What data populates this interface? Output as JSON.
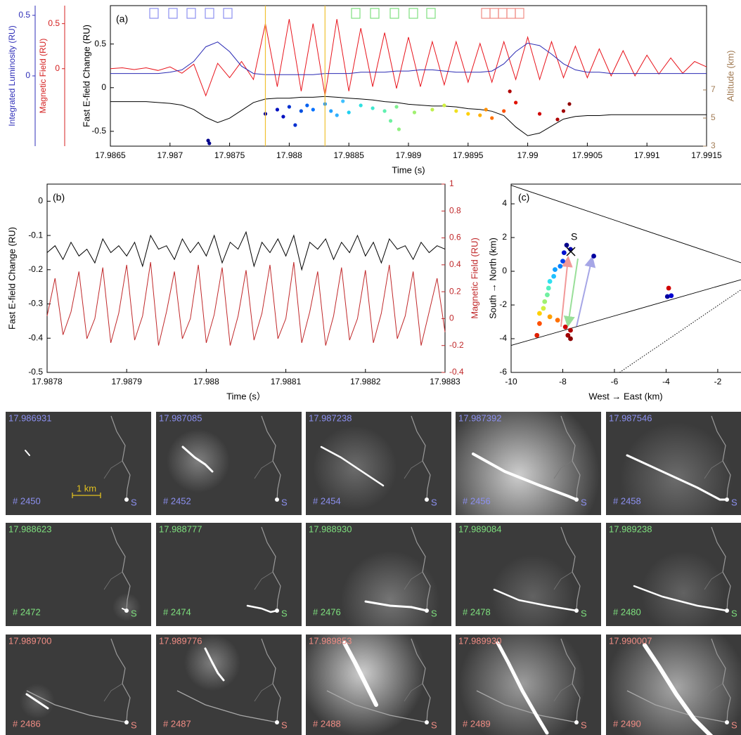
{
  "chart_data": [
    {
      "type": "line",
      "label": "(a)",
      "xlabel": "Time (s)",
      "xlim": [
        17.9865,
        17.9915
      ],
      "xticks": [
        17.9865,
        17.987,
        17.9875,
        17.988,
        17.9885,
        17.989,
        17.9895,
        17.99,
        17.9905,
        17.991,
        17.9915
      ],
      "ylabel": "Fast E-field Change (RU)",
      "ylim": [
        -0.67,
        0.94
      ],
      "yticks": [
        -0.5,
        0,
        0.5
      ],
      "y2label": "Altitude (km)",
      "y2lim": [
        3,
        13
      ],
      "y2ticks": [
        3,
        5,
        7
      ],
      "y2color": "#a27c55",
      "y3label": "Magnetic Field (RU)",
      "y3lim": [
        -0.86,
        0.7
      ],
      "y3ticks": [
        0,
        0.5
      ],
      "y3color": "#d42020",
      "y4label": "Integrated Luminosity (RU)",
      "y4lim": [
        -0.58,
        0.58
      ],
      "y4ticks": [
        0,
        0.5
      ],
      "y4color": "#2f2fb8",
      "x": [
        17.9865,
        17.9866,
        17.9867,
        17.9868,
        17.9869,
        17.987,
        17.9871,
        17.9872,
        17.9873,
        17.9874,
        17.9875,
        17.9876,
        17.9877,
        17.9878,
        17.9879,
        17.988,
        17.9881,
        17.9882,
        17.9883,
        17.9884,
        17.9885,
        17.9886,
        17.9887,
        17.9888,
        17.9889,
        17.989,
        17.9891,
        17.9892,
        17.9893,
        17.9894,
        17.9895,
        17.9896,
        17.9897,
        17.9898,
        17.9899,
        17.99,
        17.9901,
        17.9902,
        17.9903,
        17.9904,
        17.9905,
        17.9906,
        17.9907,
        17.9908,
        17.9909,
        17.991,
        17.9911,
        17.9912,
        17.9913,
        17.9914,
        17.9915
      ],
      "series": [
        {
          "color": "#000000",
          "axis": "y",
          "values": [
            -0.16,
            -0.16,
            -0.16,
            -0.16,
            -0.17,
            -0.18,
            -0.2,
            -0.25,
            -0.34,
            -0.4,
            -0.35,
            -0.26,
            -0.17,
            -0.13,
            -0.12,
            -0.12,
            -0.11,
            -0.11,
            -0.1,
            -0.11,
            -0.12,
            -0.13,
            -0.14,
            -0.16,
            -0.17,
            -0.19,
            -0.2,
            -0.21,
            -0.21,
            -0.22,
            -0.24,
            -0.25,
            -0.27,
            -0.32,
            -0.45,
            -0.55,
            -0.52,
            -0.44,
            -0.36,
            -0.33,
            -0.32,
            -0.32,
            -0.31,
            -0.31,
            -0.31,
            -0.31,
            -0.31,
            -0.31,
            -0.31,
            -0.31,
            -0.31
          ]
        },
        {
          "color": "#e8141c",
          "axis": "y3",
          "values": [
            0.0,
            0.01,
            -0.01,
            0.01,
            -0.02,
            0.02,
            -0.05,
            0.05,
            -0.3,
            0.06,
            -0.1,
            0.08,
            -0.12,
            0.5,
            -0.2,
            0.55,
            -0.25,
            0.5,
            -0.3,
            0.55,
            -0.25,
            0.45,
            -0.2,
            0.4,
            -0.22,
            0.35,
            -0.2,
            0.3,
            -0.18,
            0.3,
            -0.15,
            0.28,
            -0.15,
            0.3,
            -0.12,
            0.35,
            -0.12,
            0.3,
            -0.1,
            0.25,
            -0.1,
            0.22,
            -0.08,
            0.2,
            -0.08,
            0.15,
            -0.06,
            0.12,
            -0.05,
            0.08,
            0.02
          ]
        },
        {
          "color": "#2a2ab4",
          "axis": "y4",
          "values": [
            0.02,
            0.02,
            0.02,
            0.02,
            0.02,
            0.03,
            0.05,
            0.12,
            0.24,
            0.28,
            0.2,
            0.08,
            0.02,
            0.01,
            0.01,
            0.01,
            0.01,
            0.01,
            0.02,
            0.02,
            0.02,
            0.03,
            0.03,
            0.03,
            0.04,
            0.04,
            0.05,
            0.05,
            0.04,
            0.03,
            0.03,
            0.03,
            0.04,
            0.1,
            0.2,
            0.27,
            0.25,
            0.18,
            0.1,
            0.05,
            0.03,
            0.03,
            0.02,
            0.02,
            0.02,
            0.02,
            0.02,
            0.02,
            0.02,
            0.02,
            0.02
          ]
        }
      ],
      "scatter": {
        "axis": "y2",
        "x": [
          17.98732,
          17.98733,
          17.9878,
          17.9879,
          17.98795,
          17.988,
          17.98805,
          17.9881,
          17.98815,
          17.9882,
          17.9883,
          17.98835,
          17.9884,
          17.98845,
          17.9885,
          17.9886,
          17.9887,
          17.9888,
          17.98885,
          17.9889,
          17.98892,
          17.98905,
          17.9892,
          17.9893,
          17.9894,
          17.9895,
          17.9896,
          17.98965,
          17.9897,
          17.9898,
          17.98985,
          17.9899,
          17.9901,
          17.99025,
          17.9903,
          17.99035
        ],
        "values": [
          3.4,
          3.2,
          5.3,
          5.6,
          5.1,
          5.8,
          4.5,
          5.5,
          5.9,
          5.6,
          6.0,
          5.5,
          5.2,
          6.2,
          5.4,
          5.9,
          5.7,
          5.5,
          4.8,
          5.8,
          4.2,
          5.4,
          5.6,
          5.9,
          5.5,
          5.3,
          5.2,
          5.6,
          5.0,
          5.5,
          6.9,
          6.1,
          5.3,
          4.9,
          5.5,
          6.0
        ],
        "colors": [
          "#00008b",
          "#00008b",
          "#0000a0",
          "#0010c0",
          "#0010c0",
          "#0030d0",
          "#0030d0",
          "#0050e0",
          "#0060f0",
          "#0070ff",
          "#1090ff",
          "#20a0ff",
          "#30b0ff",
          "#40c0ff",
          "#20d0f0",
          "#30e0e0",
          "#40e8d0",
          "#60f0b0",
          "#70f0a0",
          "#80f090",
          "#90f080",
          "#a0f070",
          "#c0f050",
          "#d0f040",
          "#f0e020",
          "#ffd000",
          "#ffb000",
          "#ff9000",
          "#ff7000",
          "#ff5000",
          "#b00000",
          "#e01000",
          "#d00000",
          "#b00000",
          "#a00000",
          "#900000"
        ]
      }
    },
    {
      "type": "line",
      "label": "(b)",
      "xlabel": "Time (s）",
      "xlim": [
        17.9878,
        17.9883
      ],
      "xticks": [
        17.9878,
        17.9879,
        17.988,
        17.9881,
        17.9882,
        17.9883
      ],
      "ylabel": "Fast E-field Change (RU)",
      "ylim": [
        -0.5,
        0.05
      ],
      "yticks": [
        -0.5,
        -0.4,
        -0.3,
        -0.2,
        -0.1,
        0
      ],
      "y2label": "Magnetic Field (RU)",
      "y2lim": [
        -0.4,
        1
      ],
      "y2ticks": [
        -0.4,
        -0.2,
        0,
        0.2,
        0.4,
        0.6,
        0.8,
        1
      ],
      "y2color": "#c0282a",
      "x": [
        17.9878,
        17.98781,
        17.98782,
        17.98783,
        17.98784,
        17.98785,
        17.98786,
        17.98787,
        17.98788,
        17.98789,
        17.9879,
        17.98791,
        17.98792,
        17.98793,
        17.98794,
        17.98795,
        17.98796,
        17.98797,
        17.98798,
        17.98799,
        17.988,
        17.98801,
        17.98802,
        17.98803,
        17.98804,
        17.98805,
        17.98806,
        17.98807,
        17.98808,
        17.98809,
        17.9881,
        17.98811,
        17.98812,
        17.98813,
        17.98814,
        17.98815,
        17.98816,
        17.98817,
        17.98818,
        17.98819,
        17.9882,
        17.98821,
        17.98822,
        17.98823,
        17.98824,
        17.98825,
        17.98826,
        17.98827,
        17.98828,
        17.98829,
        17.9883
      ],
      "series": [
        {
          "color": "#000000",
          "axis": "y",
          "values": [
            -0.15,
            -0.13,
            -0.17,
            -0.12,
            -0.16,
            -0.14,
            -0.18,
            -0.11,
            -0.15,
            -0.13,
            -0.16,
            -0.12,
            -0.19,
            -0.1,
            -0.14,
            -0.13,
            -0.17,
            -0.11,
            -0.15,
            -0.12,
            -0.16,
            -0.1,
            -0.18,
            -0.12,
            -0.14,
            -0.09,
            -0.19,
            -0.12,
            -0.15,
            -0.11,
            -0.16,
            -0.1,
            -0.2,
            -0.12,
            -0.14,
            -0.11,
            -0.17,
            -0.12,
            -0.15,
            -0.1,
            -0.16,
            -0.12,
            -0.18,
            -0.11,
            -0.14,
            -0.13,
            -0.17,
            -0.12,
            -0.15,
            -0.13,
            -0.14
          ]
        },
        {
          "color": "#c0282a",
          "axis": "y2",
          "values": [
            0.02,
            0.3,
            -0.12,
            0.05,
            0.35,
            -0.15,
            0.0,
            0.38,
            -0.18,
            0.04,
            0.4,
            -0.16,
            0.02,
            0.42,
            -0.2,
            0.05,
            0.35,
            -0.15,
            0.0,
            0.4,
            -0.18,
            0.03,
            0.38,
            -0.2,
            0.02,
            0.36,
            -0.16,
            0.04,
            0.4,
            -0.15,
            0.0,
            0.42,
            -0.18,
            0.05,
            0.35,
            -0.2,
            0.02,
            0.38,
            -0.16,
            0.0,
            0.36,
            -0.18,
            0.04,
            0.4,
            -0.15,
            0.02,
            0.35,
            -0.2,
            0.05,
            0.3,
            -0.1
          ]
        }
      ]
    },
    {
      "type": "scatter",
      "label": "(c)",
      "xlabel": "West → East (km)",
      "ylabel": "South → North (km)",
      "source_label": "S",
      "xlim": [
        -10,
        -1.1
      ],
      "xticks": [
        -10,
        -8,
        -6,
        -4,
        -2
      ],
      "ylim": [
        -6,
        5.17
      ],
      "yticks": [
        -6,
        -4,
        -2,
        0,
        2,
        4
      ],
      "x": [
        -7.85,
        -7.7,
        -7.95,
        -6.8,
        -8.0,
        -8.1,
        -8.3,
        -8.35,
        -8.5,
        -8.55,
        -8.6,
        -8.7,
        -8.75,
        -8.9,
        -8.5,
        -8.2,
        -8.9,
        -9.0,
        -7.9,
        -7.7,
        -7.8,
        -7.7,
        -3.95,
        -3.8,
        -3.9
      ],
      "values": [
        1.55,
        1.3,
        1.1,
        0.9,
        0.6,
        0.3,
        0.1,
        -0.3,
        -0.6,
        -1.0,
        -1.4,
        -1.8,
        -2.2,
        -2.5,
        -2.7,
        -2.9,
        -3.1,
        -3.8,
        -3.3,
        -3.5,
        -3.8,
        -4.0,
        -1.5,
        -1.45,
        -1.0
      ],
      "colors": [
        "#00008b",
        "#0000b0",
        "#0010d0",
        "#0000a0",
        "#0040f0",
        "#0080ff",
        "#10a0ff",
        "#20c0ff",
        "#30e0f0",
        "#50f0c0",
        "#70f0a0",
        "#a0f070",
        "#d0f040",
        "#ffd000",
        "#ffa000",
        "#ff7000",
        "#ff5000",
        "#e02000",
        "#d00000",
        "#b00000",
        "#a00000",
        "#8b0000",
        "#0000a0",
        "#0000d0",
        "#d00000"
      ],
      "lines": [
        {
          "x": [
            -10,
            -1.1
          ],
          "y": [
            5.1,
            0.5
          ],
          "style": "solid"
        },
        {
          "x": [
            -10,
            -1.1
          ],
          "y": [
            -4.4,
            -0.5
          ],
          "style": "solid"
        },
        {
          "x": [
            -5.8,
            -1.1
          ],
          "y": [
            -6,
            -1.1
          ],
          "style": "dotted"
        }
      ]
    }
  ],
  "frames": {
    "scale_label": "1 km",
    "source_label": "S",
    "rows": [
      {
        "color": "#8c90f0",
        "items": [
          {
            "time": "17.986931",
            "number": "# 2450"
          },
          {
            "time": "17.987085",
            "number": "# 2452"
          },
          {
            "time": "17.987238",
            "number": "# 2454"
          },
          {
            "time": "17.987392",
            "number": "# 2456"
          },
          {
            "time": "17.987546",
            "number": "# 2458"
          }
        ]
      },
      {
        "color": "#7ee07e",
        "items": [
          {
            "time": "17.988623",
            "number": "# 2472"
          },
          {
            "time": "17.988777",
            "number": "# 2474"
          },
          {
            "time": "17.988930",
            "number": "# 2476"
          },
          {
            "time": "17.989084",
            "number": "# 2478"
          },
          {
            "time": "17.989238",
            "number": "# 2480"
          }
        ]
      },
      {
        "color": "#f08c84",
        "items": [
          {
            "time": "17.989700",
            "number": "# 2486"
          },
          {
            "time": "17.989776",
            "number": "# 2487"
          },
          {
            "time": "17.989853",
            "number": "# 2488"
          },
          {
            "time": "17.989930",
            "number": "# 2489"
          },
          {
            "time": "17.990007",
            "number": "# 2490"
          }
        ]
      }
    ]
  }
}
